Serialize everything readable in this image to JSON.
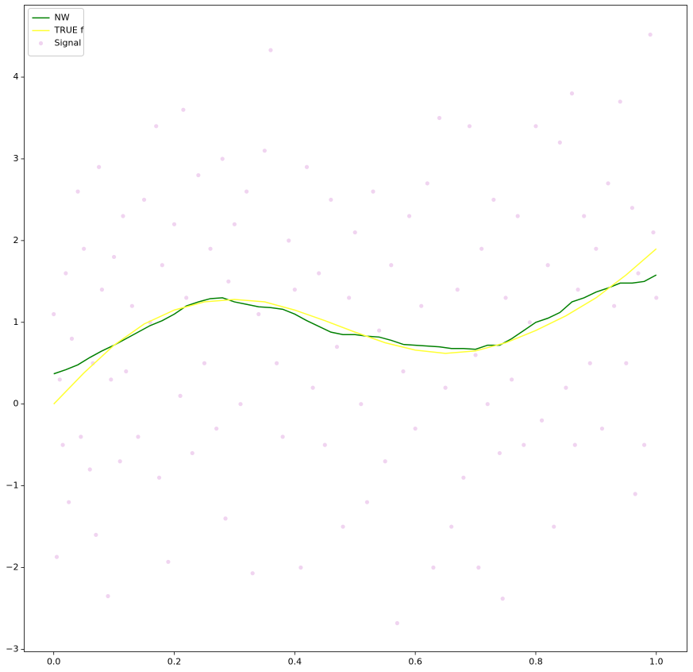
{
  "chart_data": {
    "type": "line",
    "xlim": [
      -0.049,
      1.051
    ],
    "ylim": [
      -3.03,
      4.88
    ],
    "xticks": [
      {
        "value": 0,
        "label": "0.0"
      },
      {
        "value": 0.2,
        "label": "0.2"
      },
      {
        "value": 0.4,
        "label": "0.4"
      },
      {
        "value": 0.6,
        "label": "0.6"
      },
      {
        "value": 0.8,
        "label": "0.8"
      },
      {
        "value": 1,
        "label": "1.0"
      }
    ],
    "yticks": [
      {
        "value": -3,
        "label": "−3"
      },
      {
        "value": -2,
        "label": "−2"
      },
      {
        "value": -1,
        "label": "−1"
      },
      0,
      1,
      2,
      3,
      4
    ],
    "legend": "upper-left",
    "series": [
      {
        "name": "NW",
        "type": "line",
        "color": "#008000",
        "x": [
          0,
          0.02,
          0.04,
          0.06,
          0.08,
          0.1,
          0.12,
          0.14,
          0.16,
          0.18,
          0.2,
          0.22,
          0.24,
          0.26,
          0.28,
          0.3,
          0.32,
          0.34,
          0.36,
          0.38,
          0.4,
          0.42,
          0.44,
          0.46,
          0.48,
          0.5,
          0.52,
          0.54,
          0.56,
          0.58,
          0.6,
          0.62,
          0.64,
          0.66,
          0.68,
          0.7,
          0.72,
          0.74,
          0.76,
          0.78,
          0.8,
          0.82,
          0.84,
          0.86,
          0.88,
          0.9,
          0.92,
          0.94,
          0.96,
          0.98,
          1
        ],
        "values": [
          0.37,
          0.42,
          0.48,
          0.57,
          0.65,
          0.72,
          0.8,
          0.88,
          0.96,
          1.02,
          1.1,
          1.2,
          1.25,
          1.29,
          1.3,
          1.25,
          1.22,
          1.19,
          1.18,
          1.16,
          1.1,
          1.02,
          0.95,
          0.88,
          0.85,
          0.85,
          0.83,
          0.82,
          0.78,
          0.73,
          0.72,
          0.71,
          0.7,
          0.68,
          0.68,
          0.67,
          0.72,
          0.72,
          0.8,
          0.9,
          1,
          1.05,
          1.12,
          1.25,
          1.3,
          1.37,
          1.42,
          1.48,
          1.48,
          1.5,
          1.58
        ]
      },
      {
        "name": "TRUE f",
        "type": "line",
        "color": "#ffff33",
        "x": [
          0,
          0.05,
          0.1,
          0.15,
          0.2,
          0.25,
          0.3,
          0.35,
          0.4,
          0.45,
          0.5,
          0.55,
          0.6,
          0.65,
          0.7,
          0.75,
          0.8,
          0.85,
          0.9,
          0.95,
          1
        ],
        "values": [
          0,
          0.38,
          0.72,
          0.98,
          1.15,
          1.25,
          1.28,
          1.25,
          1.15,
          1.02,
          0.88,
          0.75,
          0.66,
          0.62,
          0.65,
          0.75,
          0.9,
          1.08,
          1.3,
          1.58,
          1.9
        ]
      },
      {
        "name": "Signal",
        "type": "scatter",
        "color": "#dda0dd",
        "x": [
          0,
          0.005,
          0.01,
          0.015,
          0.02,
          0.025,
          0.03,
          0.04,
          0.045,
          0.05,
          0.06,
          0.065,
          0.07,
          0.075,
          0.08,
          0.09,
          0.095,
          0.1,
          0.11,
          0.115,
          0.12,
          0.13,
          0.14,
          0.15,
          0.16,
          0.17,
          0.175,
          0.18,
          0.19,
          0.2,
          0.21,
          0.215,
          0.22,
          0.23,
          0.24,
          0.25,
          0.26,
          0.27,
          0.28,
          0.285,
          0.29,
          0.3,
          0.31,
          0.32,
          0.33,
          0.34,
          0.35,
          0.36,
          0.37,
          0.38,
          0.39,
          0.4,
          0.41,
          0.42,
          0.43,
          0.44,
          0.45,
          0.46,
          0.47,
          0.48,
          0.49,
          0.5,
          0.51,
          0.52,
          0.53,
          0.54,
          0.55,
          0.56,
          0.57,
          0.58,
          0.59,
          0.6,
          0.61,
          0.62,
          0.63,
          0.64,
          0.65,
          0.66,
          0.67,
          0.68,
          0.69,
          0.7,
          0.705,
          0.71,
          0.72,
          0.73,
          0.74,
          0.745,
          0.75,
          0.76,
          0.77,
          0.78,
          0.79,
          0.8,
          0.81,
          0.82,
          0.83,
          0.84,
          0.85,
          0.86,
          0.865,
          0.87,
          0.88,
          0.89,
          0.9,
          0.91,
          0.92,
          0.93,
          0.94,
          0.95,
          0.96,
          0.965,
          0.97,
          0.98,
          0.99,
          0.995,
          1
        ],
        "values": [
          1.1,
          -1.87,
          0.3,
          -0.5,
          1.6,
          -1.2,
          0.8,
          2.6,
          -0.4,
          1.9,
          -0.8,
          0.5,
          -1.6,
          2.9,
          1.4,
          -2.35,
          0.3,
          1.8,
          -0.7,
          2.3,
          0.4,
          1.2,
          -0.4,
          2.5,
          1,
          3.4,
          -0.9,
          1.7,
          -1.93,
          2.2,
          0.1,
          3.6,
          1.3,
          -0.6,
          2.8,
          0.5,
          1.9,
          -0.3,
          3,
          -1.4,
          1.5,
          2.2,
          0,
          2.6,
          -2.07,
          1.1,
          3.1,
          4.33,
          0.5,
          -0.4,
          2,
          1.4,
          -2,
          2.9,
          0.2,
          1.6,
          -0.5,
          2.5,
          0.7,
          -1.5,
          1.3,
          2.1,
          0,
          -1.2,
          2.6,
          0.9,
          -0.7,
          1.7,
          -2.68,
          0.4,
          2.3,
          -0.3,
          1.2,
          2.7,
          -2,
          3.5,
          0.2,
          -1.5,
          1.4,
          -0.9,
          3.4,
          0.6,
          -2,
          1.9,
          0,
          2.5,
          -0.6,
          -2.38,
          1.3,
          0.3,
          2.3,
          -0.5,
          1,
          3.4,
          -0.2,
          1.7,
          -1.5,
          3.2,
          0.2,
          3.8,
          -0.5,
          1.4,
          2.3,
          0.5,
          1.9,
          -0.3,
          2.7,
          1.2,
          3.7,
          0.5,
          2.4,
          -1.1,
          1.6,
          -0.5,
          4.52,
          2.1,
          1.3
        ]
      }
    ]
  }
}
